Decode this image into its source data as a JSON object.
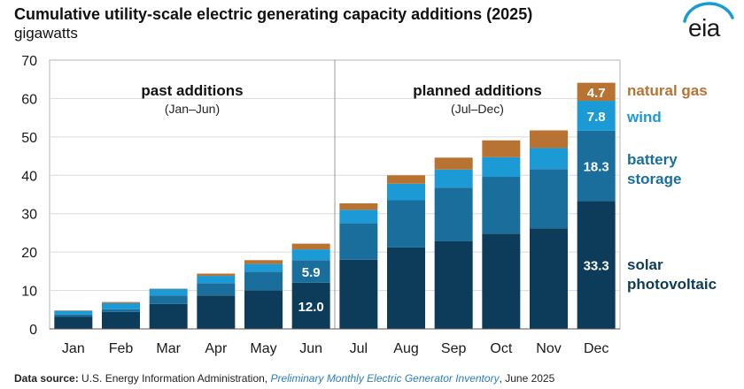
{
  "header": {
    "title": "Cumulative utility-scale electric generating capacity additions (2025)",
    "subtitle": "gigawatts"
  },
  "logo": {
    "text": "eia"
  },
  "colors": {
    "solar": "#0c3c5a",
    "battery": "#1a6e9c",
    "wind": "#1b9ad6",
    "gas": "#b87333",
    "legend_gas": "#b87333",
    "legend_wind": "#1b9ad6",
    "legend_battery": "#1a6e9c",
    "legend_solar": "#0c3c5a"
  },
  "chart_data": {
    "type": "bar",
    "stacked": true,
    "title": "Cumulative utility-scale electric generating capacity additions (2025)",
    "ylabel": "gigawatts",
    "ylim": [
      0,
      70
    ],
    "yticks": [
      0,
      10,
      20,
      30,
      40,
      50,
      60,
      70
    ],
    "categories": [
      "Jan",
      "Feb",
      "Mar",
      "Apr",
      "May",
      "Jun",
      "Jul",
      "Aug",
      "Sep",
      "Oct",
      "Nov",
      "Dec"
    ],
    "series": [
      {
        "name": "solar photovoltaic",
        "key": "solar",
        "values": [
          3.2,
          4.4,
          6.5,
          8.7,
          10.0,
          12.0,
          18.0,
          21.2,
          22.8,
          24.8,
          26.2,
          33.3
        ]
      },
      {
        "name": "battery storage",
        "key": "battery",
        "values": [
          0.5,
          0.7,
          2.2,
          3.2,
          4.9,
          5.9,
          9.5,
          12.3,
          14.0,
          14.8,
          15.4,
          18.3
        ]
      },
      {
        "name": "wind",
        "key": "wind",
        "values": [
          1.0,
          1.6,
          1.7,
          1.9,
          2.0,
          2.8,
          3.5,
          4.3,
          4.7,
          5.1,
          5.5,
          7.8
        ]
      },
      {
        "name": "natural gas",
        "key": "gas",
        "values": [
          0.1,
          0.3,
          0.1,
          0.6,
          1.0,
          1.5,
          1.7,
          2.2,
          3.1,
          4.4,
          4.6,
          4.7
        ]
      }
    ],
    "data_labels": [
      {
        "category": "Jun",
        "series": "solar",
        "text": "12.0"
      },
      {
        "category": "Jun",
        "series": "battery",
        "text": "5.9"
      },
      {
        "category": "Dec",
        "series": "solar",
        "text": "33.3"
      },
      {
        "category": "Dec",
        "series": "battery",
        "text": "18.3"
      },
      {
        "category": "Dec",
        "series": "wind",
        "text": "7.8"
      },
      {
        "category": "Dec",
        "series": "gas",
        "text": "4.7"
      }
    ],
    "annotations": {
      "past_title": "past additions",
      "past_range": "(Jan–Jun)",
      "planned_title": "planned additions",
      "planned_range": "(Jul–Dec)"
    },
    "legend": [
      {
        "key": "gas",
        "lines": [
          "natural gas"
        ]
      },
      {
        "key": "wind",
        "lines": [
          "wind"
        ]
      },
      {
        "key": "battery",
        "lines": [
          "battery",
          "storage"
        ]
      },
      {
        "key": "solar",
        "lines": [
          "solar",
          "photovoltaic"
        ]
      }
    ],
    "legend_position": "right"
  },
  "footer": {
    "label": "Data source:",
    "text1": " U.S. Energy Information Administration, ",
    "link": "Preliminary Monthly Electric Generator Inventory",
    "text2": ", June 2025"
  }
}
